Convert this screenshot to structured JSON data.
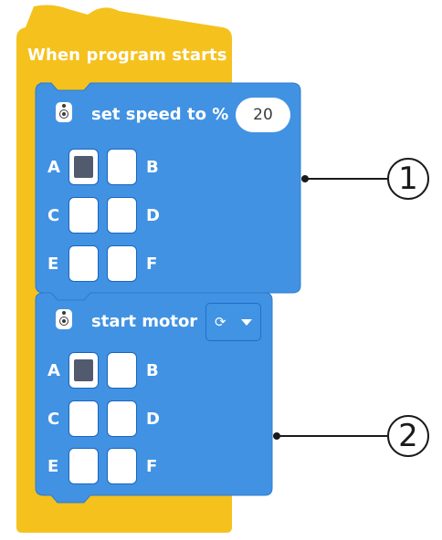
{
  "hat_block": {
    "label": "When program starts",
    "color": "#f5c11d"
  },
  "set_speed_block": {
    "label": "set speed to %",
    "value": "20",
    "icon": "motor-icon",
    "color": "#4192e2",
    "ports": [
      {
        "letter": "A",
        "selected": true
      },
      {
        "letter": "B",
        "selected": false
      },
      {
        "letter": "C",
        "selected": false
      },
      {
        "letter": "D",
        "selected": false
      },
      {
        "letter": "E",
        "selected": false
      },
      {
        "letter": "F",
        "selected": false
      }
    ]
  },
  "start_motor_block": {
    "label": "start motor",
    "direction_icon": "clockwise-icon",
    "icon": "motor-icon",
    "color": "#4192e2",
    "ports": [
      {
        "letter": "A",
        "selected": true
      },
      {
        "letter": "B",
        "selected": false
      },
      {
        "letter": "C",
        "selected": false
      },
      {
        "letter": "D",
        "selected": false
      },
      {
        "letter": "E",
        "selected": false
      },
      {
        "letter": "F",
        "selected": false
      }
    ]
  },
  "callouts": [
    {
      "number": "1"
    },
    {
      "number": "2"
    }
  ]
}
